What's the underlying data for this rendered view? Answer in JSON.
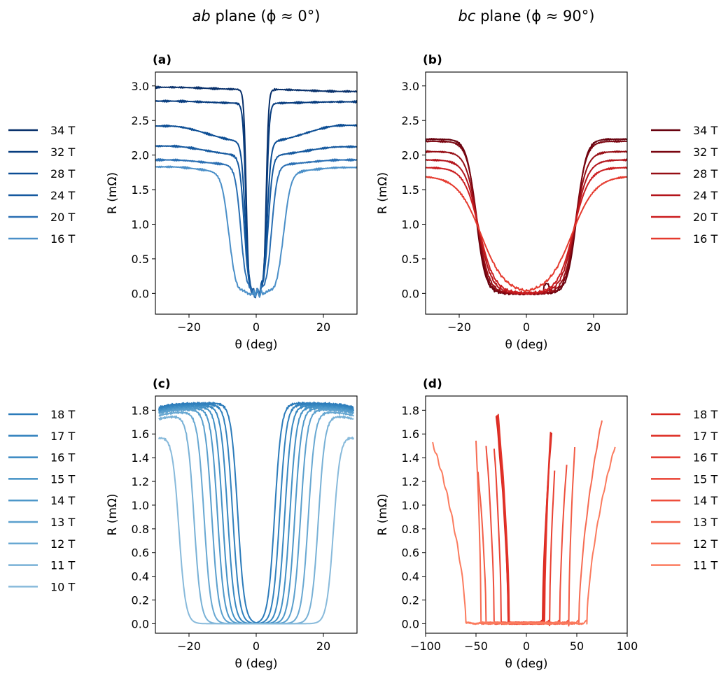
{
  "column_titles": {
    "left": {
      "italic": "ab",
      "rest": " plane (ϕ ≈ 0°)"
    },
    "right": {
      "italic": "bc",
      "rest": " plane (ϕ ≈ 90°)"
    }
  },
  "chart_data": [
    {
      "id": "a",
      "label": "(a)",
      "type": "line",
      "xlabel": "θ (deg)",
      "ylabel": "R (mΩ)",
      "xlim": [
        -30,
        30
      ],
      "ylim": [
        -0.3,
        3.2
      ],
      "xticks": [
        -20,
        0,
        20
      ],
      "yticks": [
        0.0,
        0.5,
        1.0,
        1.5,
        2.0,
        2.5,
        3.0
      ],
      "ytick_decimals": 1,
      "legend_position": "left",
      "series": [
        {
          "name": "34 T",
          "color": "#08306b",
          "plateau": 2.95,
          "left_sat": 2.98,
          "right_sat": 2.92,
          "edge": 3.0,
          "w": 1.0
        },
        {
          "name": "32 T",
          "color": "#083d7f",
          "plateau": 2.75,
          "left_sat": 2.78,
          "right_sat": 2.77,
          "edge": 3.1,
          "w": 1.2
        },
        {
          "name": "28 T",
          "color": "#0b4d94",
          "plateau": 2.2,
          "left_sat": 2.42,
          "right_sat": 2.43,
          "edge": 3.3,
          "w": 1.6
        },
        {
          "name": "24 T",
          "color": "#15599f",
          "plateau": 2.0,
          "left_sat": 2.13,
          "right_sat": 2.12,
          "edge": 3.6,
          "w": 1.9
        },
        {
          "name": "20 T",
          "color": "#2a6fb3",
          "plateau": 1.86,
          "left_sat": 1.93,
          "right_sat": 1.93,
          "edge": 4.6,
          "w": 2.4
        },
        {
          "name": "16 T",
          "color": "#4a8fc8",
          "plateau": 1.76,
          "left_sat": 1.83,
          "right_sat": 1.82,
          "edge": 8.2,
          "w": 3.0
        }
      ]
    },
    {
      "id": "b",
      "label": "(b)",
      "type": "line",
      "xlabel": "θ (deg)",
      "ylabel": "R (mΩ)",
      "xlim": [
        -30,
        30
      ],
      "ylim": [
        -0.3,
        3.2
      ],
      "xticks": [
        -20,
        0,
        20
      ],
      "yticks": [
        0.0,
        0.5,
        1.0,
        1.5,
        2.0,
        2.5,
        3.0
      ],
      "ytick_decimals": 1,
      "legend_position": "right",
      "series": [
        {
          "name": "34 T",
          "color": "#67000d",
          "left_sat": 2.23,
          "right_sat": 2.23,
          "edge": 15.0,
          "w": 1.4
        },
        {
          "name": "32 T",
          "color": "#7a0510",
          "left_sat": 2.2,
          "right_sat": 2.2,
          "edge": 14.8,
          "w": 1.5
        },
        {
          "name": "28 T",
          "color": "#960d14",
          "left_sat": 2.05,
          "right_sat": 2.05,
          "edge": 14.6,
          "w": 1.7
        },
        {
          "name": "24 T",
          "color": "#b3141b",
          "left_sat": 1.93,
          "right_sat": 1.93,
          "edge": 14.3,
          "w": 2.0
        },
        {
          "name": "20 T",
          "color": "#cb1d1f",
          "left_sat": 1.82,
          "right_sat": 1.82,
          "edge": 14.0,
          "w": 2.3
        },
        {
          "name": "16 T",
          "color": "#e53a2e",
          "left_sat": 1.7,
          "right_sat": 1.7,
          "edge": 13.5,
          "w": 3.5
        }
      ]
    },
    {
      "id": "c",
      "label": "(c)",
      "type": "line",
      "xlabel": "θ (deg)",
      "ylabel": "R (mΩ)",
      "xlim": [
        -30,
        30
      ],
      "ylim": [
        -0.08,
        1.92
      ],
      "xticks": [
        -20,
        0,
        20
      ],
      "yticks": [
        0.0,
        0.2,
        0.4,
        0.6,
        0.8,
        1.0,
        1.2,
        1.4,
        1.6,
        1.8
      ],
      "ytick_decimals": 1,
      "legend_position": "left",
      "series": [
        {
          "name": "18 T",
          "color": "#2b7bba",
          "sat": 1.86,
          "edge": 5.5,
          "w": 1.0
        },
        {
          "name": "17 T",
          "color": "#3181bd",
          "sat": 1.85,
          "edge": 7.0,
          "w": 1.0
        },
        {
          "name": "16 T",
          "color": "#3888c1",
          "sat": 1.84,
          "edge": 8.5,
          "w": 1.0
        },
        {
          "name": "15 T",
          "color": "#4290c5",
          "sat": 1.83,
          "edge": 10.0,
          "w": 1.0
        },
        {
          "name": "14 T",
          "color": "#4d97c9",
          "sat": 1.82,
          "edge": 11.5,
          "w": 1.0
        },
        {
          "name": "13 T",
          "color": "#5a9fcd",
          "sat": 1.81,
          "edge": 13.2,
          "w": 1.0
        },
        {
          "name": "12 T",
          "color": "#68a8d2",
          "sat": 1.79,
          "edge": 15.5,
          "w": 1.0
        },
        {
          "name": "11 T",
          "color": "#78b1d6",
          "sat": 1.76,
          "edge": 18.5,
          "w": 1.0
        },
        {
          "name": "10 T",
          "color": "#88badb",
          "sat": 1.6,
          "edge": 23.0,
          "w": 1.0
        }
      ]
    },
    {
      "id": "d",
      "label": "(d)",
      "type": "line",
      "xlabel": "θ (deg)",
      "ylabel": "R (mΩ)",
      "xlim": [
        -100,
        100
      ],
      "ylim": [
        -0.08,
        1.92
      ],
      "xticks": [
        -100,
        -50,
        0,
        50,
        100
      ],
      "yticks": [
        0.0,
        0.2,
        0.4,
        0.6,
        0.8,
        1.0,
        1.2,
        1.4,
        1.6,
        1.8
      ],
      "ytick_decimals": 1,
      "legend_position": "right",
      "series": [
        {
          "name": "18 T",
          "color": "#d7261e",
          "lmin": -30,
          "ledge": -18,
          "lsat": 1.77,
          "redge": 16,
          "rmax": 25,
          "rsat": 1.62
        },
        {
          "name": "17 T",
          "color": "#de2d24",
          "lmin": -29,
          "ledge": -18,
          "lsat": 1.76,
          "redge": 17,
          "rmax": 24,
          "rsat": 1.6
        },
        {
          "name": "16 T",
          "color": "#e3342a",
          "lmin": -28,
          "ledge": -17,
          "lsat": 1.74,
          "redge": 18,
          "rmax": 24,
          "rsat": 1.58
        },
        {
          "name": "15 T",
          "color": "#e94132",
          "lmin": -32,
          "ledge": -25,
          "lsat": 1.5,
          "redge": 23,
          "rmax": 28,
          "rsat": 1.3
        },
        {
          "name": "14 T",
          "color": "#ee4e3c",
          "lmin": -40,
          "ledge": -32,
          "lsat": 1.5,
          "redge": 33,
          "rmax": 40,
          "rsat": 1.35
        },
        {
          "name": "13 T",
          "color": "#f25c45",
          "lmin": -48,
          "ledge": -40,
          "lsat": 1.3,
          "redge": 42,
          "rmax": 48,
          "rsat": 1.5
        },
        {
          "name": "12 T",
          "color": "#f66b52",
          "lmin": -50,
          "ledge": -45,
          "lsat": 1.55,
          "redge": 52,
          "rmax": 75,
          "rsat": 1.72
        },
        {
          "name": "11 T",
          "color": "#fb7b5e",
          "lmin": -93,
          "ledge": -60,
          "lsat": 1.52,
          "redge": 60,
          "rmax": 88,
          "rsat": 1.5
        }
      ]
    }
  ]
}
